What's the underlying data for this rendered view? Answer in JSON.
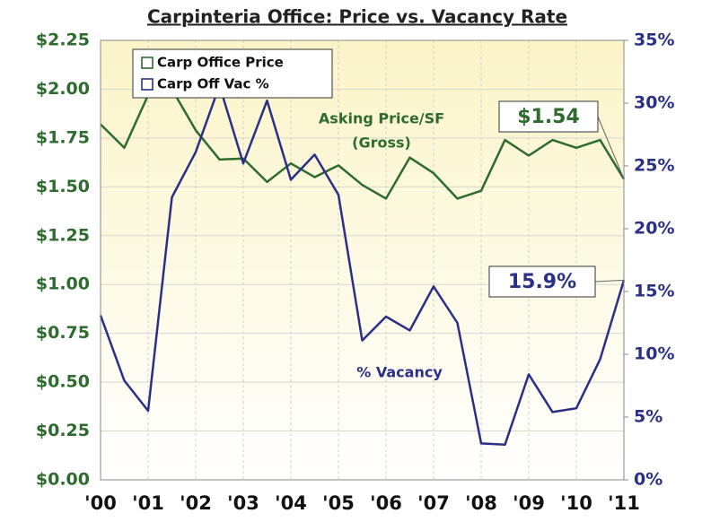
{
  "chart_data": {
    "type": "line",
    "title": "Carpinteria Office: Price vs. Vacancy Rate",
    "x": [
      2000,
      2000.5,
      2001,
      2001.5,
      2002,
      2002.5,
      2003,
      2003.5,
      2004,
      2004.5,
      2005,
      2005.5,
      2006,
      2006.5,
      2007,
      2007.5,
      2008,
      2008.5,
      2009,
      2009.5,
      2010,
      2010.5,
      2011
    ],
    "xlim": [
      2000,
      2011
    ],
    "xticks": [
      {
        "value": 2000,
        "label": "'00"
      },
      {
        "value": 2001,
        "label": "'01"
      },
      {
        "value": 2002,
        "label": "'02"
      },
      {
        "value": 2003,
        "label": "'03"
      },
      {
        "value": 2004,
        "label": "'04"
      },
      {
        "value": 2005,
        "label": "'05"
      },
      {
        "value": 2006,
        "label": "'06"
      },
      {
        "value": 2007,
        "label": "'07"
      },
      {
        "value": 2008,
        "label": "'08"
      },
      {
        "value": 2009,
        "label": "'09"
      },
      {
        "value": 2010,
        "label": "'10"
      },
      {
        "value": 2011,
        "label": "'11"
      }
    ],
    "ylim": [
      0,
      2.25
    ],
    "yticks": [
      {
        "value": 0,
        "label": "$0.00"
      },
      {
        "value": 0.25,
        "label": "$0.25"
      },
      {
        "value": 0.5,
        "label": "$0.50"
      },
      {
        "value": 0.75,
        "label": "$0.75"
      },
      {
        "value": 1,
        "label": "$1.00"
      },
      {
        "value": 1.25,
        "label": "$1.25"
      },
      {
        "value": 1.5,
        "label": "$1.50"
      },
      {
        "value": 1.75,
        "label": "$1.75"
      },
      {
        "value": 2,
        "label": "$2.00"
      },
      {
        "value": 2.25,
        "label": "$2.25"
      }
    ],
    "y2lim": [
      0,
      35
    ],
    "y2ticks": [
      {
        "value": 0,
        "label": "0%"
      },
      {
        "value": 5,
        "label": "5%"
      },
      {
        "value": 10,
        "label": "10%"
      },
      {
        "value": 15,
        "label": "15%"
      },
      {
        "value": 20,
        "label": "20%"
      },
      {
        "value": 25,
        "label": "25%"
      },
      {
        "value": 30,
        "label": "30%"
      },
      {
        "value": 35,
        "label": "35%"
      }
    ],
    "grid": true,
    "legend": "top-left",
    "series": [
      {
        "name": "Carp Office Price",
        "color": "#2e6b2e",
        "axis": "y",
        "values": [
          1.82,
          1.7,
          1.97,
          2.0,
          1.79,
          1.64,
          1.645,
          1.525,
          1.62,
          1.55,
          1.61,
          1.51,
          1.44,
          1.65,
          1.57,
          1.44,
          1.48,
          1.74,
          1.66,
          1.74,
          1.7,
          1.74,
          1.54
        ]
      },
      {
        "name": "Carp Off Vac %",
        "color": "#2b2f86",
        "axis": "y2",
        "values": [
          13.1,
          7.9,
          5.5,
          22.5,
          26.1,
          31.4,
          25.2,
          30.2,
          23.9,
          25.9,
          22.7,
          11.1,
          13.0,
          11.9,
          15.4,
          12.5,
          2.9,
          2.8,
          8.4,
          5.4,
          5.7,
          9.6,
          15.9
        ]
      }
    ],
    "annotations": {
      "price_label_1": "Asking Price/SF",
      "price_label_2": "(Gross)",
      "price_callout": "$1.54",
      "vacancy_callout": "15.9%",
      "vacancy_label": "% Vacancy"
    }
  }
}
